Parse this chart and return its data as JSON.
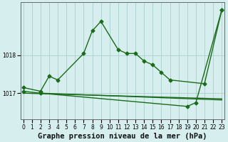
{
  "title": "Graphe pression niveau de la mer (hPa)",
  "background_color": "#d6eeee",
  "grid_color": "#aacece",
  "line_color": "#1a6b1a",
  "x_ticks": [
    0,
    1,
    2,
    3,
    4,
    5,
    6,
    7,
    8,
    9,
    10,
    11,
    12,
    13,
    14,
    15,
    16,
    17,
    18,
    19,
    20,
    21,
    22,
    23
  ],
  "y_ticks": [
    1017,
    1018
  ],
  "ylim": [
    1016.3,
    1019.4
  ],
  "xlim": [
    -0.3,
    23.3
  ],
  "series1_x": [
    0,
    2,
    3,
    4,
    7,
    8,
    9,
    11,
    12,
    13,
    14,
    15,
    16,
    17,
    21,
    23
  ],
  "series1_y": [
    1017.15,
    1017.05,
    1017.45,
    1017.35,
    1018.05,
    1018.65,
    1018.9,
    1018.15,
    1018.05,
    1018.05,
    1017.85,
    1017.75,
    1017.55,
    1017.35,
    1017.25,
    1019.2
  ],
  "series2_x": [
    0,
    2,
    19,
    20,
    23
  ],
  "series2_y": [
    1017.05,
    1017.0,
    1016.65,
    1016.75,
    1019.2
  ],
  "trendline1_x": [
    0,
    23
  ],
  "trendline1_y": [
    1017.0,
    1016.85
  ],
  "trendline2_x": [
    2,
    23
  ],
  "trendline2_y": [
    1017.0,
    1016.82
  ],
  "marker": "D",
  "marker_size": 2.5,
  "line_width": 1.0,
  "title_fontsize": 7.5,
  "tick_fontsize": 5.5
}
